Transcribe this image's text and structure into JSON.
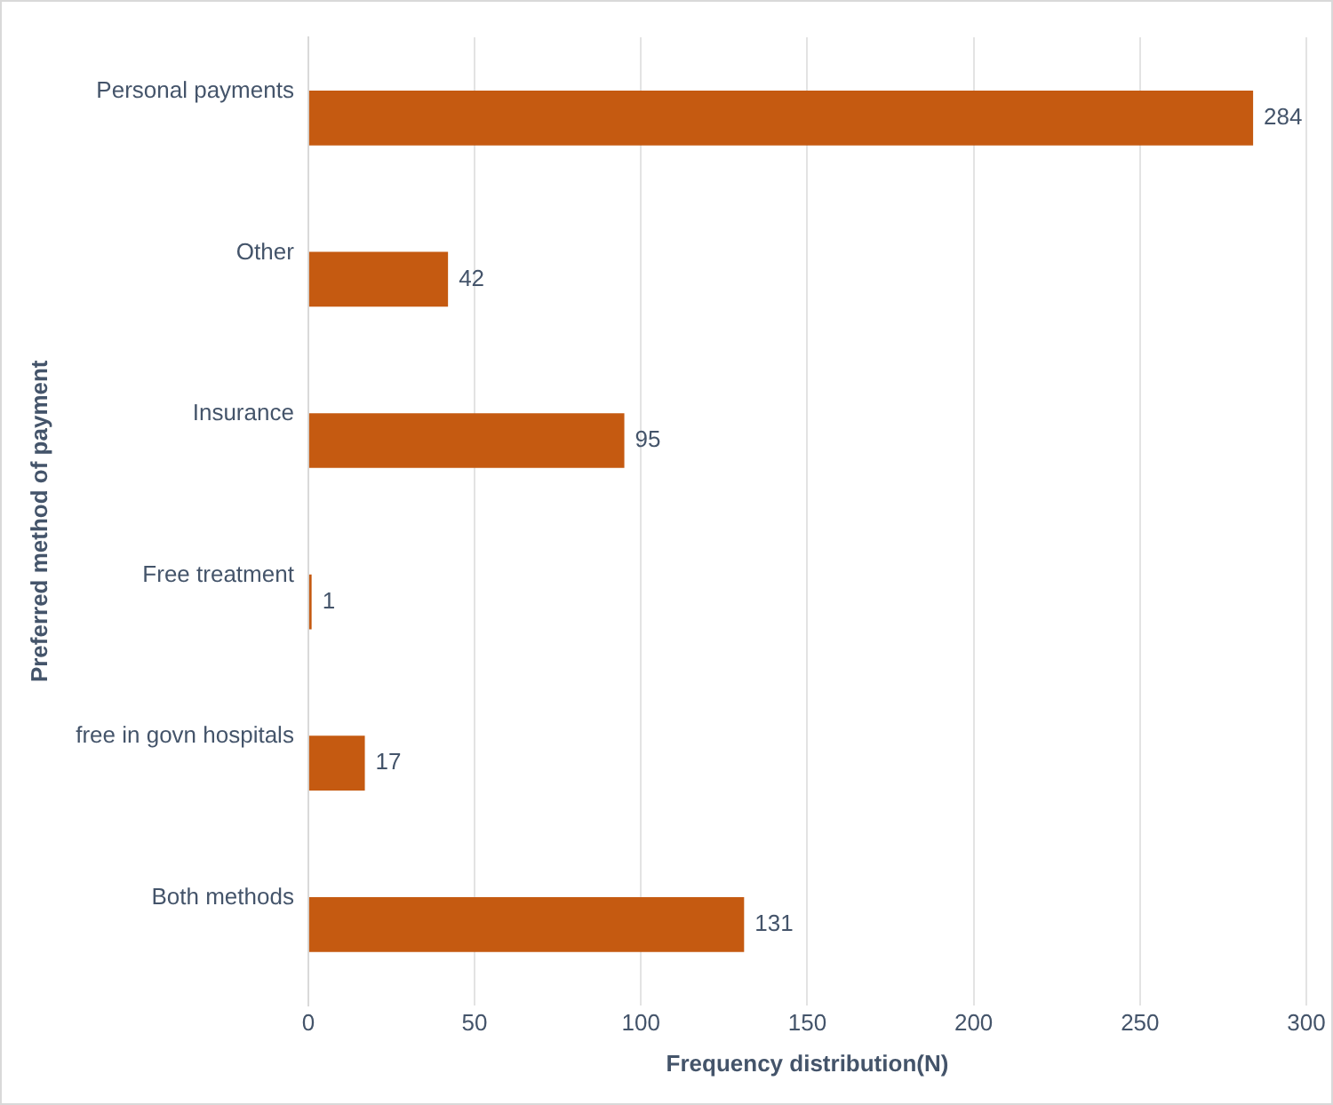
{
  "chart_data": {
    "type": "bar",
    "orientation": "horizontal",
    "xlabel": "Frequency distribution(N)",
    "ylabel": "Preferred method of payment",
    "categories": [
      "Personal payments",
      "Other",
      "Insurance",
      "Free treatment",
      "free in govn hospitals",
      "Both methods"
    ],
    "values": [
      284,
      42,
      95,
      1,
      17,
      131
    ],
    "color": "#c55a11",
    "xlim": [
      0,
      300
    ],
    "xticks": [
      0,
      50,
      100,
      150,
      200,
      250,
      300
    ],
    "grid": "x",
    "data_labels": true,
    "legend": false
  }
}
